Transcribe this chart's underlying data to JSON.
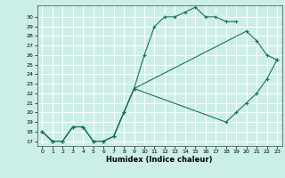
{
  "xlabel": "Humidex (Indice chaleur)",
  "bg_color": "#cceee8",
  "grid_color": "#ffffff",
  "line_color": "#1a7060",
  "xlim": [
    -0.5,
    23.5
  ],
  "ylim": [
    16.5,
    31.2
  ],
  "xticks": [
    0,
    1,
    2,
    3,
    4,
    5,
    6,
    7,
    8,
    9,
    10,
    11,
    12,
    13,
    14,
    15,
    16,
    17,
    18,
    19,
    20,
    21,
    22,
    23
  ],
  "yticks": [
    17,
    18,
    19,
    20,
    21,
    22,
    23,
    24,
    25,
    26,
    27,
    28,
    29,
    30
  ],
  "line1_x": [
    0,
    1,
    2,
    3,
    4,
    5,
    6,
    7,
    8,
    9,
    10,
    11,
    12,
    13,
    14,
    15,
    16,
    17,
    18,
    19
  ],
  "line1_y": [
    18,
    17,
    17,
    18.5,
    18.5,
    17,
    17,
    17.5,
    20,
    22.5,
    26,
    29,
    30,
    30,
    30.5,
    31,
    30,
    30,
    29.5,
    29.5
  ],
  "line2_x": [
    0,
    1,
    2,
    3,
    4,
    5,
    6,
    7,
    8,
    9,
    20,
    21,
    22,
    23
  ],
  "line2_y": [
    18,
    17,
    17,
    18.5,
    18.5,
    17,
    17,
    17.5,
    20,
    22.5,
    28.5,
    27.5,
    26,
    25.5
  ],
  "line3_x": [
    0,
    1,
    2,
    3,
    4,
    5,
    6,
    7,
    8,
    9,
    18,
    19,
    20,
    21,
    22,
    23
  ],
  "line3_y": [
    18,
    17,
    17,
    18.5,
    18.5,
    17,
    17,
    17.5,
    20,
    22.5,
    19,
    20,
    21,
    22,
    23.5,
    25.5
  ]
}
